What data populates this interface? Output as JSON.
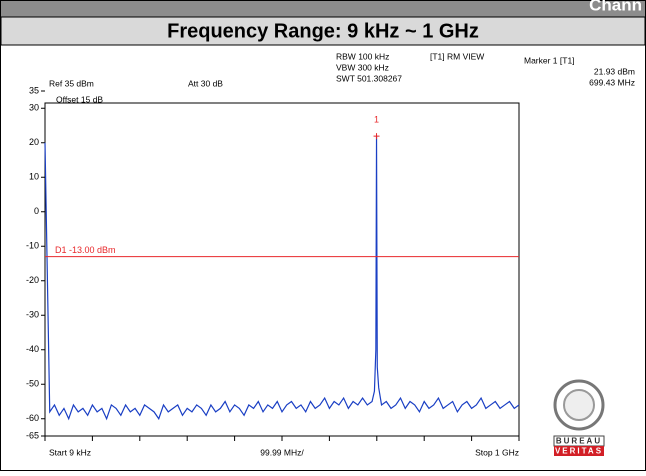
{
  "page_header": "Chann",
  "chart_data": {
    "type": "line",
    "title": "Frequency Range: 9 kHz ~ 1 GHz",
    "annotations": [
      "Ref 35 dBm",
      "Att 30 dB",
      "RBW 100 kHz",
      "VBW 300 kHz",
      "SWT 501.308267",
      "[T1] RM VIEW",
      "Marker 1 [T1]",
      "21.93 dBm",
      "699.43 MHz",
      "Offset 15 dB",
      "Start 9 kHz",
      "99.99 MHz/",
      "Stop 1 GHz"
    ],
    "display_line": {
      "value": -13,
      "label": "D1 -13.00 dBm",
      "color": "#e8282b"
    },
    "marker": {
      "x": 699.43,
      "y": 21.93,
      "label": "1",
      "color": "#e8282b"
    },
    "x": [
      0.009,
      10,
      20,
      30,
      40,
      50,
      60,
      70,
      80,
      90,
      100,
      110,
      120,
      130,
      140,
      150,
      160,
      170,
      180,
      190,
      200,
      210,
      220,
      230,
      240,
      250,
      260,
      270,
      280,
      290,
      300,
      310,
      320,
      330,
      340,
      350,
      360,
      370,
      380,
      390,
      400,
      410,
      420,
      430,
      440,
      450,
      460,
      470,
      480,
      490,
      500,
      510,
      520,
      530,
      540,
      550,
      560,
      570,
      580,
      590,
      600,
      610,
      620,
      630,
      640,
      650,
      660,
      670,
      680,
      690,
      695,
      698,
      699.43,
      701,
      704,
      710,
      720,
      730,
      740,
      750,
      760,
      770,
      780,
      790,
      800,
      810,
      820,
      830,
      840,
      850,
      860,
      870,
      880,
      890,
      900,
      910,
      920,
      930,
      940,
      950,
      960,
      970,
      980,
      990,
      1000
    ],
    "series": [
      {
        "name": "Trace 1",
        "color": "#1a3fc4",
        "values": [
          20,
          -58,
          -56,
          -59,
          -57,
          -60,
          -56,
          -58,
          -57,
          -59,
          -56,
          -58,
          -57,
          -60,
          -56,
          -57,
          -59,
          -56,
          -58,
          -57,
          -59,
          -56,
          -57,
          -58,
          -60,
          -56,
          -58,
          -57,
          -56,
          -59,
          -57,
          -58,
          -56,
          -57,
          -59,
          -56,
          -58,
          -57,
          -55,
          -58,
          -56,
          -57,
          -59,
          -56,
          -57,
          -55,
          -58,
          -56,
          -57,
          -55,
          -58,
          -56,
          -55,
          -57,
          -56,
          -58,
          -55,
          -57,
          -56,
          -54,
          -57,
          -55,
          -56,
          -54,
          -57,
          -55,
          -56,
          -54,
          -56,
          -55,
          -52,
          -40,
          21.93,
          -45,
          -51,
          -56,
          -55,
          -57,
          -56,
          -54,
          -57,
          -55,
          -56,
          -58,
          -55,
          -57,
          -56,
          -54,
          -57,
          -56,
          -55,
          -58,
          -56,
          -55,
          -57,
          -56,
          -54,
          -57,
          -56,
          -55,
          -57,
          -56,
          -55,
          -57,
          -56
        ]
      }
    ],
    "xlim": [
      0.009,
      1000
    ],
    "ylim": [
      -65,
      35
    ],
    "xticks": [
      0.009,
      100,
      200,
      300,
      400,
      500,
      600,
      700,
      800,
      900,
      1000
    ],
    "yticks": [
      35,
      30,
      20,
      10,
      0,
      -10,
      -20,
      -30,
      -40,
      -50,
      -60,
      -65
    ],
    "grid": false
  },
  "logo": [
    "BUREAU",
    "VERITAS"
  ]
}
